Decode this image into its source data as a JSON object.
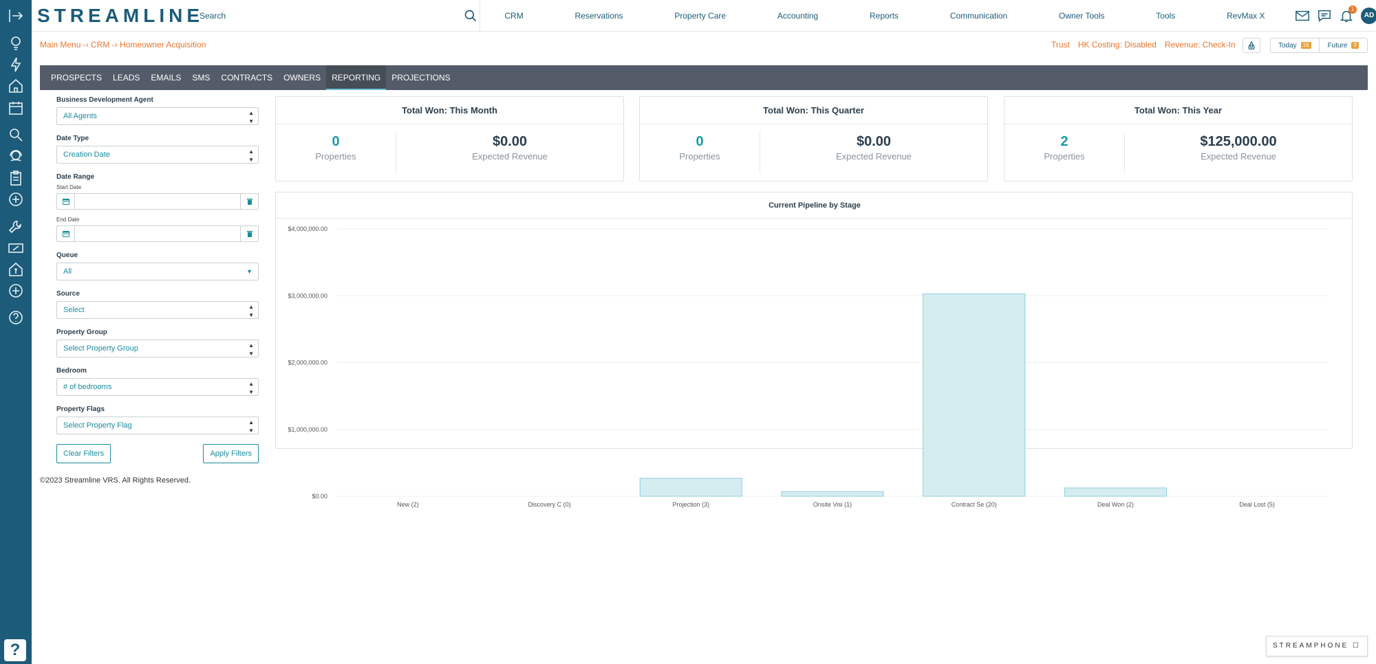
{
  "app": {
    "logo": "STREAMLINE"
  },
  "search": {
    "placeholder": "Search"
  },
  "nav": [
    "CRM",
    "Reservations",
    "Property Care",
    "Accounting",
    "Reports",
    "Communication",
    "Owner Tools",
    "Tools",
    "RevMax X"
  ],
  "header": {
    "notification_count": "1",
    "avatar_initials": "AD"
  },
  "breadcrumb": "Main Menu -› CRM -› Homeowner Acquisition",
  "status_links": [
    "Trust",
    "HK Costing: Disabled",
    "Revenue: Check-In"
  ],
  "today": {
    "label": "Today",
    "count": "16"
  },
  "future": {
    "label": "Future",
    "count": "0"
  },
  "subnav": [
    "PROSPECTS",
    "LEADS",
    "EMAILS",
    "SMS",
    "CONTRACTS",
    "OWNERS",
    "REPORTING",
    "PROJECTIONS"
  ],
  "filters": {
    "bda": {
      "label": "Business Development Agent",
      "value": "All Agents"
    },
    "date_type": {
      "label": "Date Type",
      "value": "Creation Date"
    },
    "date_range": {
      "label": "Date Range",
      "start_label": "Start Date",
      "end_label": "End Date"
    },
    "queue": {
      "label": "Queue",
      "value": "All"
    },
    "source": {
      "label": "Source",
      "value": "Select"
    },
    "property_group": {
      "label": "Property Group",
      "value": "Select Property Group"
    },
    "bedroom": {
      "label": "Bedroom",
      "value": "# of bedrooms"
    },
    "property_flags": {
      "label": "Property Flags",
      "value": "Select Property Flag"
    },
    "clear_label": "Clear Filters",
    "apply_label": "Apply Filters"
  },
  "footer": "©2023 Streamline VRS. All Rights Reserved.",
  "cards": [
    {
      "title": "Total Won: This Month",
      "count": "0",
      "count_label": "Properties",
      "revenue": "$0.00",
      "revenue_label": "Expected Revenue"
    },
    {
      "title": "Total Won: This Quarter",
      "count": "0",
      "count_label": "Properties",
      "revenue": "$0.00",
      "revenue_label": "Expected Revenue"
    },
    {
      "title": "Total Won: This Year",
      "count": "2",
      "count_label": "Properties",
      "revenue": "$125,000.00",
      "revenue_label": "Expected Revenue"
    }
  ],
  "chart_data": {
    "type": "bar",
    "title": "Current Pipeline by Stage",
    "categories": [
      "New (2)",
      "Discovery C (0)",
      "Projection (3)",
      "Onsite Visi (1)",
      "Contract Se (20)",
      "Deal Won (2)",
      "Deal Lost (5)"
    ],
    "values": [
      0,
      0,
      270000,
      70000,
      3030000,
      125000,
      0
    ],
    "ylim": [
      0,
      4000000
    ],
    "yticks": [
      "$0.00",
      "$1,000,000.00",
      "$2,000,000.00",
      "$3,000,000.00",
      "$4,000,000.00"
    ],
    "grid": true,
    "bar_color": "#d5ecf0",
    "bar_edge": "#8fcfdc"
  },
  "streamphone": {
    "text": "STREAMPHONE"
  }
}
